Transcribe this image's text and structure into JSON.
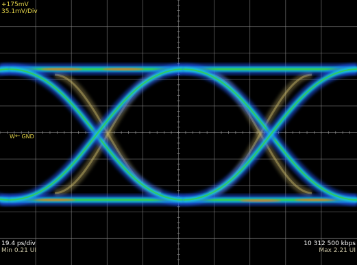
{
  "readouts": {
    "offset": "+175mV",
    "scale": "35.1mV/Div",
    "timebase": "19.4 ps/div",
    "min_ui": "Min 0.21 UI",
    "bitrate": "10 312 500 kbps",
    "max_ui": "Max 2.21 UI"
  },
  "markers": {
    "ground_label": "GND",
    "ground_channel": "W"
  },
  "colors": {
    "background": "#000000",
    "grid": "#8a8a8a",
    "trace_cyan": "#19c8d6",
    "trace_blue": "#1f5cff",
    "trace_green": "#34d04a",
    "trace_orange": "#ff6a28",
    "ghost_trace": "#c8b86a",
    "label_yellow": "#e8d84a"
  }
}
